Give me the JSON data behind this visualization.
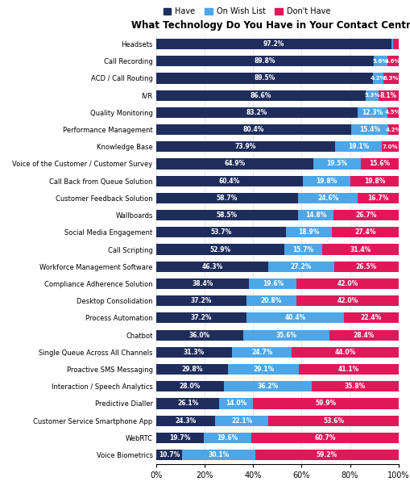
{
  "title": "What Technology Do You Have in Your Contact Centre?",
  "categories": [
    "Headsets",
    "Call Recording",
    "ACD / Call Routing",
    "IVR",
    "Quality Monitoring",
    "Performance Management",
    "Knowledge Base",
    "Voice of the Customer / Customer Survey",
    "Call Back from Queue Solution",
    "Customer Feedback Solution",
    "Wallboards",
    "Social Media Engagement",
    "Call Scripting",
    "Workforce Management Software",
    "Compliance Adherence Solution",
    "Desktop Consolidation",
    "Process Automation",
    "Chatbot",
    "Single Queue Across All Channels",
    "Proactive SMS Messaging",
    "Interaction / Speech Analytics",
    "Predictive Dialler",
    "Customer Service Smartphone App",
    "WebRTC",
    "Voice Biometrics"
  ],
  "have": [
    97.2,
    89.8,
    89.5,
    86.6,
    83.2,
    80.4,
    73.9,
    64.9,
    60.4,
    58.7,
    58.5,
    53.7,
    52.9,
    46.3,
    38.4,
    37.2,
    37.2,
    36.0,
    31.3,
    29.8,
    28.0,
    26.1,
    24.3,
    19.7,
    10.7
  ],
  "wish": [
    0.7,
    5.6,
    4.2,
    5.3,
    12.3,
    15.4,
    19.1,
    19.5,
    19.8,
    24.6,
    14.8,
    18.9,
    15.7,
    27.2,
    19.6,
    20.8,
    40.4,
    35.6,
    24.7,
    29.1,
    36.2,
    14.0,
    22.1,
    19.6,
    30.1
  ],
  "dont": [
    2.1,
    4.6,
    6.3,
    8.1,
    4.5,
    4.2,
    7.0,
    15.6,
    19.8,
    16.7,
    26.7,
    27.4,
    31.4,
    26.5,
    42.0,
    42.0,
    22.4,
    28.4,
    44.0,
    41.1,
    35.8,
    59.9,
    53.6,
    60.7,
    59.2
  ],
  "color_have": "#1f2d5c",
  "color_wish": "#4da6e8",
  "color_dont": "#e0185a",
  "background": "#ffffff",
  "bar_height": 0.62,
  "figsize": [
    5.1,
    6.12
  ],
  "dpi": 100
}
